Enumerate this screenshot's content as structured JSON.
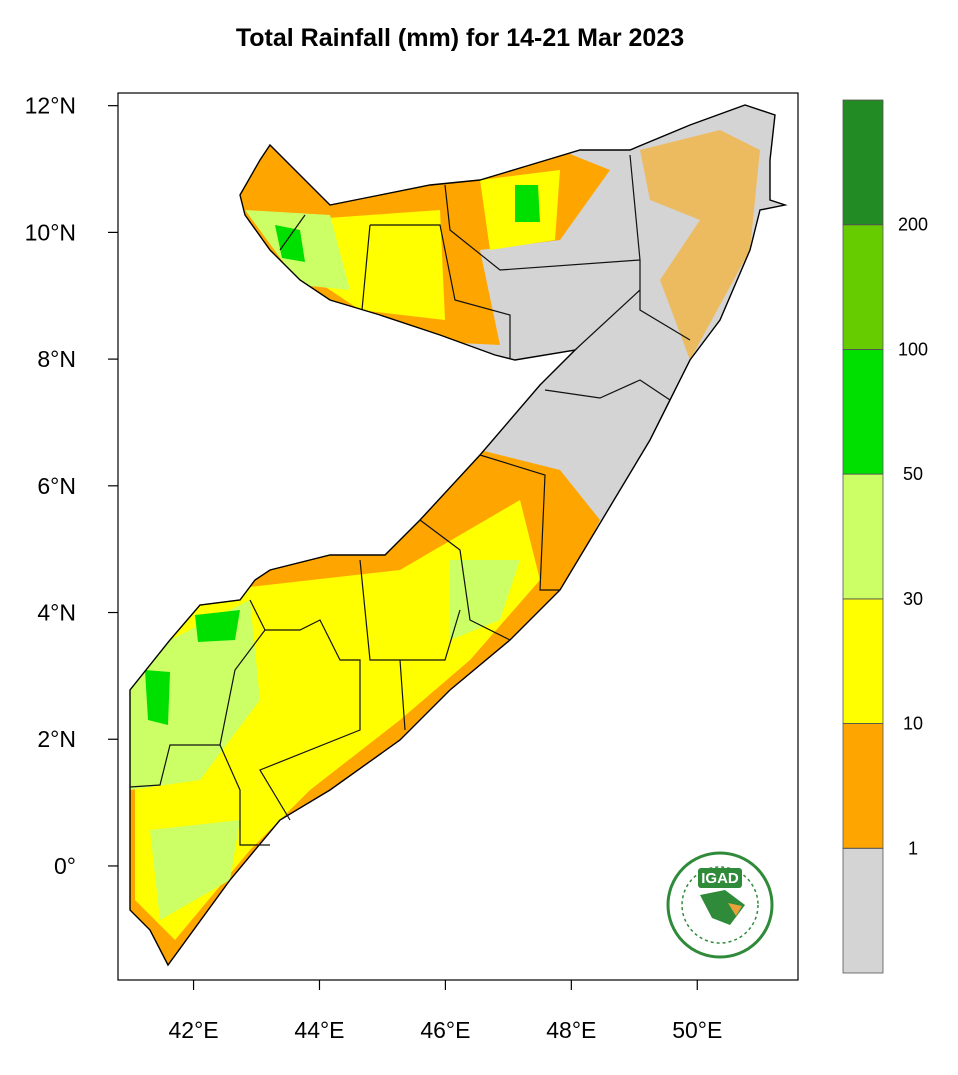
{
  "map": {
    "title": "Total Rainfall (mm) for 14-21 Mar 2023",
    "xlim": [
      40.8,
      51.6
    ],
    "ylim": [
      -1.8,
      12.2
    ],
    "xticks": [
      {
        "value": 42,
        "label": "42°E"
      },
      {
        "value": 44,
        "label": "44°E"
      },
      {
        "value": 46,
        "label": "46°E"
      },
      {
        "value": 48,
        "label": "48°E"
      },
      {
        "value": 50,
        "label": "50°E"
      }
    ],
    "yticks": [
      {
        "value": 0,
        "label": "0°"
      },
      {
        "value": 2,
        "label": "2°N"
      },
      {
        "value": 4,
        "label": "4°N"
      },
      {
        "value": 6,
        "label": "6°N"
      },
      {
        "value": 8,
        "label": "8°N"
      },
      {
        "value": 10,
        "label": "10°N"
      },
      {
        "value": 12,
        "label": "12°N"
      }
    ],
    "colorbar": {
      "labels": [
        1,
        10,
        30,
        50,
        100,
        200
      ],
      "colors": [
        "#d4d4d4",
        "#ffa500",
        "#ffff00",
        "#ccff66",
        "#00e000",
        "#66cc00",
        "#238b23"
      ]
    },
    "logo": "IGAD"
  }
}
